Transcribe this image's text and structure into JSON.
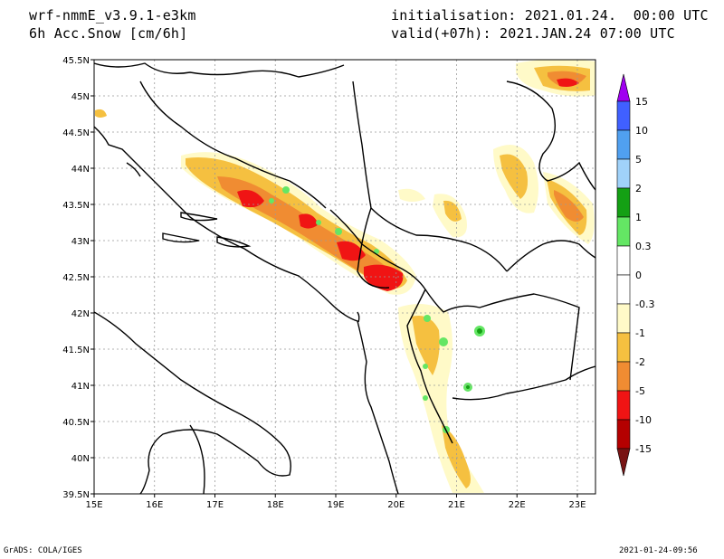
{
  "header": {
    "model": "wrf-nmmE_v3.9.1-e3km",
    "field": "6h Acc.Snow [cm/6h]",
    "init": "initialisation: 2021.01.24.  00:00 UTC",
    "valid": "valid(+07h): 2021.JAN.24 07:00 UTC"
  },
  "footer": {
    "credit": "GrADS: COLA/IGES",
    "timestamp": "2021-01-24-09:56"
  },
  "map": {
    "x_labels": [
      "15E",
      "16E",
      "17E",
      "18E",
      "19E",
      "20E",
      "21E",
      "22E",
      "23E"
    ],
    "y_labels": [
      "39.5N",
      "40N",
      "40.5N",
      "41N",
      "41.5N",
      "42N",
      "42.5N",
      "43N",
      "43.5N",
      "44N",
      "44.5N",
      "45N",
      "45.5N"
    ],
    "lon_range": [
      15,
      23.3
    ],
    "lat_range": [
      39.5,
      45.5
    ]
  },
  "legend": {
    "levels": [
      {
        "label": "15",
        "color": "#a000f0"
      },
      {
        "label": "10",
        "color": "#4060ff"
      },
      {
        "label": "5",
        "color": "#50a0f0"
      },
      {
        "label": "2",
        "color": "#a0d2fa"
      },
      {
        "label": "1",
        "color": "#14a014"
      },
      {
        "label": "0.3",
        "color": "#64e664"
      },
      {
        "label": "0",
        "color": "#ffffff"
      },
      {
        "label": "-0.3",
        "color": "#ffffff"
      },
      {
        "label": "-1",
        "color": "#fffac8"
      },
      {
        "label": "-2",
        "color": "#f5c040"
      },
      {
        "label": "-5",
        "color": "#f08c32"
      },
      {
        "label": "-10",
        "color": "#f01414"
      },
      {
        "label": "-15",
        "color": "#b40000"
      },
      {
        "label": "",
        "color": "#781414"
      }
    ]
  }
}
